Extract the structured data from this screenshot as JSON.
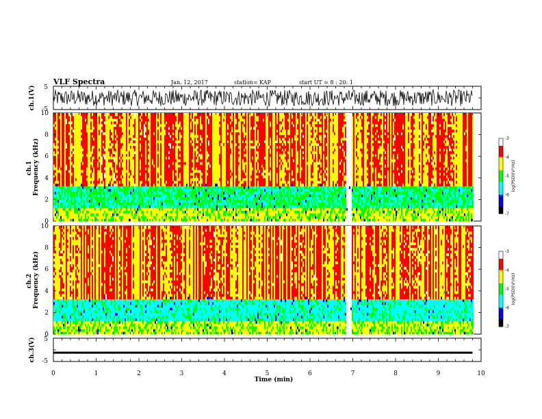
{
  "header": {
    "title": "VLF Spectra",
    "date": "Jan. 12, 2017",
    "station": "station= KAP",
    "start": "start  UT =  8 : 20: 1"
  },
  "chart_data": [
    {
      "type": "line",
      "name": "ch1-voltage",
      "ylabel": "ch.1(V)",
      "ylim": [
        -5,
        5
      ],
      "yticks": [
        "5",
        "-5"
      ],
      "xlim": [
        0,
        10
      ],
      "description_level": {
        "mean": 0.0,
        "amplitude": 3.5
      }
    },
    {
      "type": "heatmap",
      "name": "ch1-spectrogram",
      "ylabel": "ch.1\nFrequency (kHz)",
      "ylim": [
        0,
        10
      ],
      "yticks": [
        "0",
        "2",
        "4",
        "6",
        "8",
        "10"
      ],
      "xlim": [
        0,
        9.8
      ],
      "colorbar": {
        "label": "log(PSD)(V²/Hz)",
        "range": [
          -7,
          -3
        ],
        "ticks": [
          "-3",
          "-4",
          "-5",
          "-6",
          "-7"
        ]
      },
      "bright_event_min": 6.9
    },
    {
      "type": "heatmap",
      "name": "ch2-spectrogram",
      "ylabel": "ch.2\nFrequency (kHz)",
      "ylim": [
        0,
        10
      ],
      "yticks": [
        "0",
        "2",
        "4",
        "6",
        "8",
        "10"
      ],
      "xlim": [
        0,
        9.8
      ],
      "colorbar": {
        "label": "log(PSD)(V²/Hz)",
        "range": [
          -7,
          -3
        ],
        "ticks": [
          "-3",
          "-4",
          "-5",
          "-6",
          "-7"
        ]
      },
      "bright_event_min": 6.9
    },
    {
      "type": "line",
      "name": "ch3-voltage",
      "ylabel": "ch.3(V)",
      "ylim": [
        -5,
        5
      ],
      "yticks": [
        "5",
        "-5"
      ],
      "xlim": [
        0,
        10
      ],
      "value": -1.2
    }
  ],
  "xaxis": {
    "label": "Time (min)",
    "ticks": [
      "0",
      "1",
      "2",
      "3",
      "4",
      "5",
      "6",
      "7",
      "8",
      "9",
      "10"
    ]
  },
  "colors": {
    "scale": [
      "#000000",
      "#0000ff",
      "#00ffff",
      "#00ff00",
      "#ffff00",
      "#ff0000",
      "#ffffff"
    ]
  }
}
